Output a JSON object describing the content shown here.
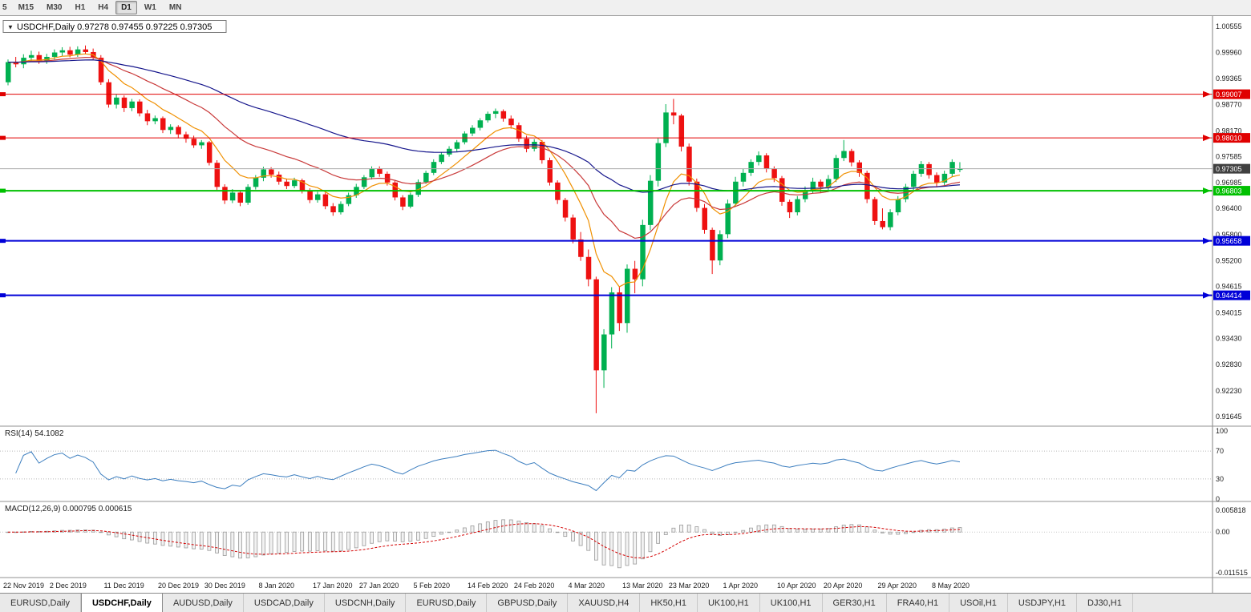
{
  "toolbar": {
    "timeframes": [
      "5",
      "M15",
      "M30",
      "H1",
      "H4",
      "D1",
      "W1",
      "MN"
    ],
    "active": "D1"
  },
  "icons": {
    "dropdown": "▼"
  },
  "chart": {
    "title": "USDCHF,Daily 0.97278 0.97455 0.97225 0.97305"
  },
  "price_axis": {
    "labels": [
      "1.00555",
      "0.99960",
      "0.99365",
      "0.98770",
      "0.98170",
      "0.97585",
      "0.96985",
      "0.96400",
      "0.95800",
      "0.95200",
      "0.94615",
      "0.94015",
      "0.93430",
      "0.92830",
      "0.92230",
      "0.91645"
    ]
  },
  "hlines": [
    {
      "price": 0.99007,
      "label": "0.99007",
      "color": "#e00000",
      "width": 1
    },
    {
      "price": 0.9801,
      "label": "0.98010",
      "color": "#e00000",
      "width": 1
    },
    {
      "price": 0.96803,
      "label": "0.96803",
      "color": "#00c000",
      "width": 2
    },
    {
      "price": 0.95658,
      "label": "0.95658",
      "color": "#0000d8",
      "width": 2
    },
    {
      "price": 0.94414,
      "label": "0.94414",
      "color": "#0000d8",
      "width": 2
    }
  ],
  "current_price": {
    "value": 0.97305,
    "label": "0.97305",
    "bg": "#404040"
  },
  "ma_lines": [
    {
      "name": "ma-fast-orange",
      "period": 8,
      "color": "#f09000"
    },
    {
      "name": "ma-medium-red",
      "period": 21,
      "color": "#c93a3a"
    },
    {
      "name": "ma-slow-blue",
      "period": 55,
      "color": "#16168c"
    }
  ],
  "indicators": {
    "rsi": {
      "label": "RSI(14) 54.1082",
      "period": 14,
      "value": "54.1082",
      "color": "#3c7ebf",
      "axis_labels": [
        "100",
        "70",
        "30",
        "0"
      ],
      "levels": [
        70,
        30
      ]
    },
    "macd": {
      "label": "MACD(12,26,9) 0.000795 0.000615",
      "fast": 12,
      "slow": 26,
      "signal": 9,
      "macd_value": "0.000795",
      "signal_value": "0.000615",
      "axis_labels": [
        "0.005818",
        "0.00",
        "-0.011515"
      ],
      "signal_color": "#d40000",
      "histogram_color": "#9a9a9a"
    }
  },
  "tabs": {
    "active_index": 1,
    "items": [
      "EURUSD,Daily",
      "USDCHF,Daily",
      "AUDUSD,Daily",
      "USDCAD,Daily",
      "USDCNH,Daily",
      "EURUSD,Daily",
      "GBPUSD,Daily",
      "XAUUSD,H4",
      "HK50,H1",
      "UK100,H1",
      "UK100,H1",
      "GER30,H1",
      "FRA40,H1",
      "USOil,H1",
      "USDJPY,H1",
      "DJ30,H1"
    ]
  },
  "chart_data": {
    "type": "candlestick",
    "symbol": "USDCHF",
    "timeframe": "Daily",
    "current_bar": {
      "open": "0.97278",
      "high": "0.97455",
      "low": "0.97225",
      "close": "0.97305"
    },
    "colors": {
      "up": "#00b050",
      "down": "#ee1111"
    },
    "ylim": [
      0.91645,
      1.00555
    ],
    "dates": [
      "22 Nov 2019",
      "2 Dec 2019",
      "11 Dec 2019",
      "20 Dec 2019",
      "30 Dec 2019",
      "8 Jan 2020",
      "17 Jan 2020",
      "27 Jan 2020",
      "5 Feb 2020",
      "14 Feb 2020",
      "24 Feb 2020",
      "4 Mar 2020",
      "13 Mar 2020",
      "23 Mar 2020",
      "1 Apr 2020",
      "10 Apr 2020",
      "20 Apr 2020",
      "29 Apr 2020",
      "8 May 2020"
    ],
    "date_indices": [
      0,
      6,
      13,
      20,
      26,
      33,
      40,
      46,
      53,
      60,
      66,
      73,
      80,
      86,
      93,
      100,
      106,
      113,
      120
    ],
    "candles": [
      [
        0.9928,
        0.998,
        0.9921,
        0.9974
      ],
      [
        0.9974,
        0.9986,
        0.9962,
        0.9969
      ],
      [
        0.9969,
        0.9992,
        0.996,
        0.9984
      ],
      [
        0.9984,
        1.0,
        0.9975,
        0.999
      ],
      [
        0.999,
        0.9998,
        0.997,
        0.9977
      ],
      [
        0.9977,
        0.9993,
        0.997,
        0.9986
      ],
      [
        0.9986,
        1.0003,
        0.998,
        0.9996
      ],
      [
        0.9996,
        1.0008,
        0.9988,
        1.0001
      ],
      [
        1.0001,
        1.0009,
        0.9985,
        0.9991
      ],
      [
        0.9991,
        1.001,
        0.9986,
        1.0003
      ],
      [
        1.0003,
        1.0012,
        0.9992,
        0.9997
      ],
      [
        0.9997,
        1.0005,
        0.9978,
        0.9984
      ],
      [
        0.9984,
        0.999,
        0.9922,
        0.9928
      ],
      [
        0.9928,
        0.9935,
        0.987,
        0.9877
      ],
      [
        0.9877,
        0.99,
        0.9868,
        0.9893
      ],
      [
        0.9893,
        0.9898,
        0.986,
        0.9869
      ],
      [
        0.9869,
        0.989,
        0.9862,
        0.9884
      ],
      [
        0.9884,
        0.9889,
        0.985,
        0.9857
      ],
      [
        0.9857,
        0.9865,
        0.983,
        0.9839
      ],
      [
        0.9839,
        0.9852,
        0.9832,
        0.9846
      ],
      [
        0.9846,
        0.985,
        0.9812,
        0.9819
      ],
      [
        0.9819,
        0.9832,
        0.981,
        0.9826
      ],
      [
        0.9826,
        0.983,
        0.98,
        0.9809
      ],
      [
        0.9809,
        0.9815,
        0.979,
        0.9799
      ],
      [
        0.9799,
        0.9806,
        0.9778,
        0.9784
      ],
      [
        0.9784,
        0.9796,
        0.9776,
        0.9791
      ],
      [
        0.9791,
        0.9794,
        0.9738,
        0.9744
      ],
      [
        0.9744,
        0.975,
        0.9682,
        0.9689
      ],
      [
        0.9689,
        0.9695,
        0.965,
        0.9658
      ],
      [
        0.9658,
        0.9684,
        0.9652,
        0.9676
      ],
      [
        0.9676,
        0.968,
        0.9645,
        0.9653
      ],
      [
        0.9653,
        0.9695,
        0.9648,
        0.9689
      ],
      [
        0.9689,
        0.9716,
        0.9683,
        0.971
      ],
      [
        0.971,
        0.9735,
        0.9702,
        0.9729
      ],
      [
        0.9729,
        0.9734,
        0.971,
        0.9717
      ],
      [
        0.9717,
        0.9724,
        0.9694,
        0.9701
      ],
      [
        0.9701,
        0.9708,
        0.9684,
        0.9691
      ],
      [
        0.9691,
        0.971,
        0.9686,
        0.9704
      ],
      [
        0.9704,
        0.9708,
        0.9674,
        0.9681
      ],
      [
        0.9681,
        0.9686,
        0.9652,
        0.9659
      ],
      [
        0.9659,
        0.9678,
        0.9653,
        0.9672
      ],
      [
        0.9672,
        0.9676,
        0.9638,
        0.9645
      ],
      [
        0.9645,
        0.9652,
        0.9623,
        0.9631
      ],
      [
        0.9631,
        0.9656,
        0.9626,
        0.965
      ],
      [
        0.965,
        0.9676,
        0.9645,
        0.967
      ],
      [
        0.967,
        0.9696,
        0.9664,
        0.9689
      ],
      [
        0.9689,
        0.9716,
        0.9684,
        0.9711
      ],
      [
        0.9711,
        0.9736,
        0.9706,
        0.9731
      ],
      [
        0.9731,
        0.9736,
        0.9712,
        0.9719
      ],
      [
        0.9719,
        0.9724,
        0.9692,
        0.9699
      ],
      [
        0.9699,
        0.9704,
        0.9658,
        0.9665
      ],
      [
        0.9665,
        0.967,
        0.9636,
        0.9644
      ],
      [
        0.9644,
        0.9676,
        0.964,
        0.9671
      ],
      [
        0.9671,
        0.9706,
        0.9666,
        0.97
      ],
      [
        0.97,
        0.9726,
        0.9696,
        0.9721
      ],
      [
        0.9721,
        0.9752,
        0.9716,
        0.9746
      ],
      [
        0.9746,
        0.9768,
        0.9741,
        0.9763
      ],
      [
        0.9763,
        0.9782,
        0.9758,
        0.9776
      ],
      [
        0.9776,
        0.9796,
        0.977,
        0.9791
      ],
      [
        0.9791,
        0.9816,
        0.9786,
        0.9811
      ],
      [
        0.9811,
        0.983,
        0.9805,
        0.9824
      ],
      [
        0.9824,
        0.9846,
        0.9818,
        0.9841
      ],
      [
        0.9841,
        0.9861,
        0.9836,
        0.9856
      ],
      [
        0.9856,
        0.9868,
        0.9846,
        0.9862
      ],
      [
        0.9862,
        0.9866,
        0.9838,
        0.9845
      ],
      [
        0.9845,
        0.9852,
        0.9822,
        0.983
      ],
      [
        0.983,
        0.9836,
        0.9792,
        0.9799
      ],
      [
        0.9799,
        0.9806,
        0.9768,
        0.9776
      ],
      [
        0.9776,
        0.9798,
        0.977,
        0.9792
      ],
      [
        0.9792,
        0.9796,
        0.9742,
        0.975
      ],
      [
        0.975,
        0.9756,
        0.9692,
        0.9699
      ],
      [
        0.9699,
        0.9704,
        0.965,
        0.9659
      ],
      [
        0.9659,
        0.9664,
        0.961,
        0.9619
      ],
      [
        0.9619,
        0.9626,
        0.956,
        0.9569
      ],
      [
        0.9569,
        0.9586,
        0.952,
        0.9529
      ],
      [
        0.9529,
        0.9546,
        0.9462,
        0.9478
      ],
      [
        0.9478,
        0.9484,
        0.9172,
        0.927
      ],
      [
        0.927,
        0.9364,
        0.923,
        0.9352
      ],
      [
        0.9352,
        0.946,
        0.932,
        0.9448
      ],
      [
        0.9448,
        0.9462,
        0.936,
        0.9378
      ],
      [
        0.9378,
        0.9512,
        0.9356,
        0.9502
      ],
      [
        0.9502,
        0.952,
        0.9446,
        0.9478
      ],
      [
        0.9478,
        0.9614,
        0.9462,
        0.9602
      ],
      [
        0.9602,
        0.9716,
        0.959,
        0.9703
      ],
      [
        0.9703,
        0.98,
        0.969,
        0.9789
      ],
      [
        0.9789,
        0.9878,
        0.978,
        0.9859
      ],
      [
        0.9859,
        0.989,
        0.9832,
        0.9852
      ],
      [
        0.9852,
        0.9856,
        0.977,
        0.9781
      ],
      [
        0.9781,
        0.9788,
        0.9692,
        0.9701
      ],
      [
        0.9701,
        0.9708,
        0.9632,
        0.9641
      ],
      [
        0.9641,
        0.965,
        0.9582,
        0.9591
      ],
      [
        0.9591,
        0.9596,
        0.949,
        0.9521
      ],
      [
        0.9521,
        0.959,
        0.951,
        0.9581
      ],
      [
        0.9581,
        0.966,
        0.9572,
        0.9651
      ],
      [
        0.9651,
        0.9712,
        0.9644,
        0.9701
      ],
      [
        0.9701,
        0.973,
        0.969,
        0.9721
      ],
      [
        0.9721,
        0.9752,
        0.9714,
        0.9746
      ],
      [
        0.9746,
        0.977,
        0.9738,
        0.9761
      ],
      [
        0.9761,
        0.9766,
        0.9722,
        0.9731
      ],
      [
        0.9731,
        0.9736,
        0.97,
        0.9709
      ],
      [
        0.9709,
        0.9714,
        0.9646,
        0.9655
      ],
      [
        0.9655,
        0.966,
        0.9618,
        0.9631
      ],
      [
        0.9631,
        0.9668,
        0.9624,
        0.9661
      ],
      [
        0.9661,
        0.969,
        0.9654,
        0.9681
      ],
      [
        0.9681,
        0.971,
        0.9674,
        0.9701
      ],
      [
        0.9701,
        0.9706,
        0.9676,
        0.9689
      ],
      [
        0.9689,
        0.9716,
        0.9682,
        0.9707
      ],
      [
        0.9707,
        0.9762,
        0.97,
        0.9755
      ],
      [
        0.9755,
        0.9796,
        0.9748,
        0.9771
      ],
      [
        0.9771,
        0.9776,
        0.9736,
        0.9745
      ],
      [
        0.9745,
        0.975,
        0.9712,
        0.9721
      ],
      [
        0.9721,
        0.9726,
        0.9652,
        0.9661
      ],
      [
        0.9661,
        0.9666,
        0.9602,
        0.9611
      ],
      [
        0.9611,
        0.964,
        0.9592,
        0.9597
      ],
      [
        0.9597,
        0.9638,
        0.959,
        0.9631
      ],
      [
        0.9631,
        0.9668,
        0.9624,
        0.9661
      ],
      [
        0.9661,
        0.9696,
        0.9654,
        0.9689
      ],
      [
        0.9689,
        0.9726,
        0.9682,
        0.9719
      ],
      [
        0.9719,
        0.9748,
        0.9712,
        0.9741
      ],
      [
        0.9741,
        0.9746,
        0.9708,
        0.9716
      ],
      [
        0.9716,
        0.9722,
        0.969,
        0.9699
      ],
      [
        0.9699,
        0.9726,
        0.9692,
        0.9719
      ],
      [
        0.9719,
        0.9752,
        0.9712,
        0.9746
      ],
      [
        0.97278,
        0.97455,
        0.97225,
        0.97305
      ]
    ]
  }
}
